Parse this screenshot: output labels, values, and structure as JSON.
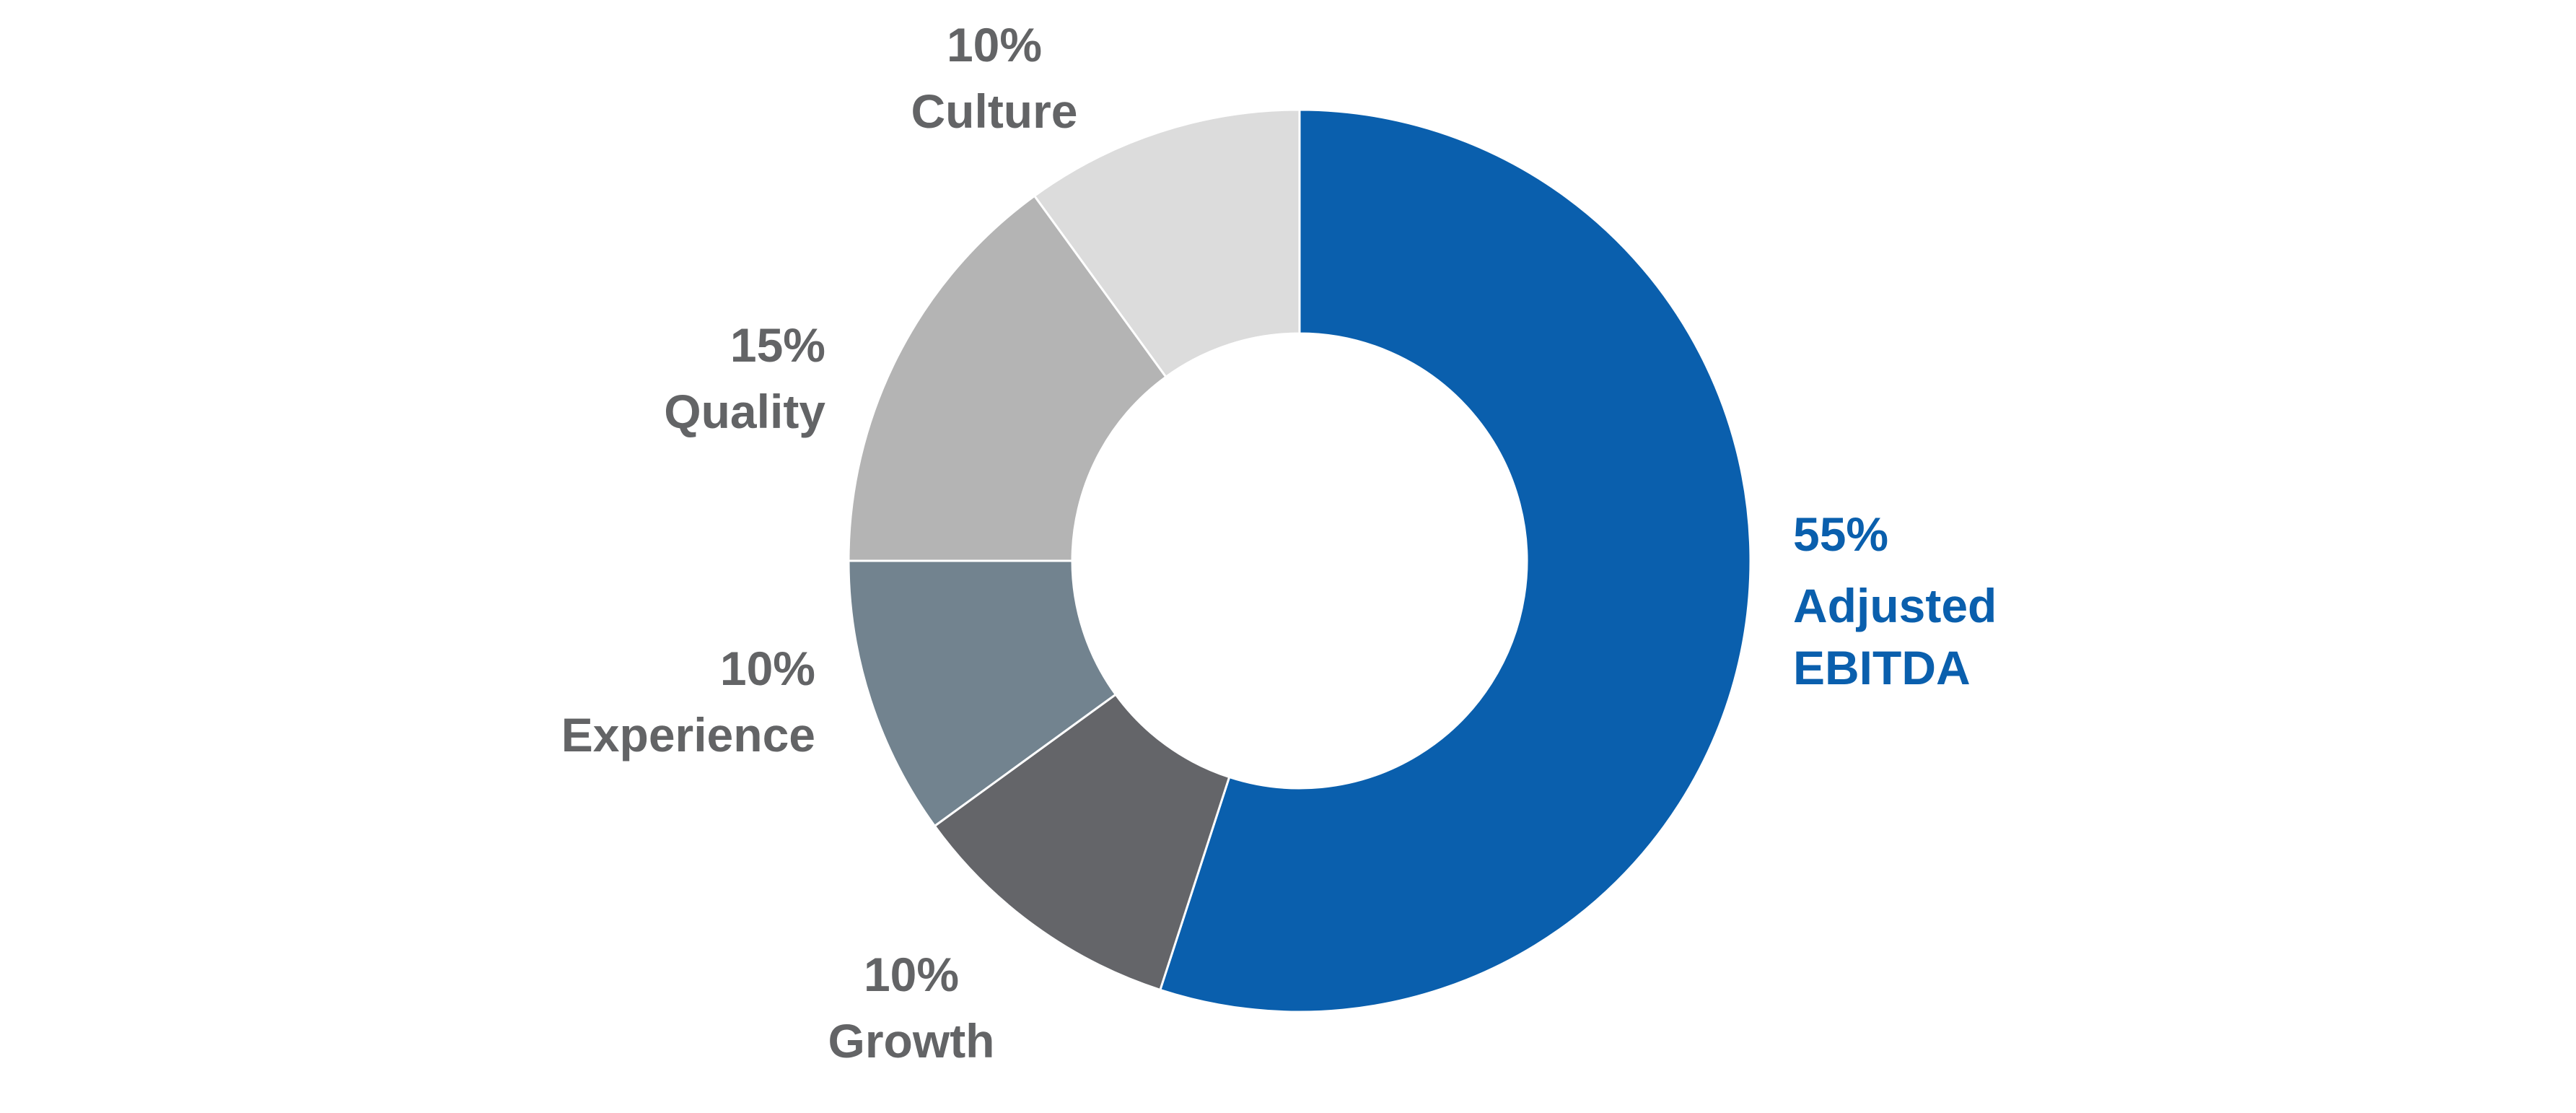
{
  "chart_data": {
    "type": "donut",
    "categories": [
      "Adjusted EBITDA",
      "Growth",
      "Experience",
      "Quality",
      "Culture"
    ],
    "values": [
      55,
      10,
      10,
      15,
      10
    ],
    "value_labels": [
      "55%",
      "10%",
      "10%",
      "15%",
      "10%"
    ],
    "colors": [
      "#0a5fad",
      "#646569",
      "#72838f",
      "#b4b4b4",
      "#dcdcdc"
    ]
  }
}
